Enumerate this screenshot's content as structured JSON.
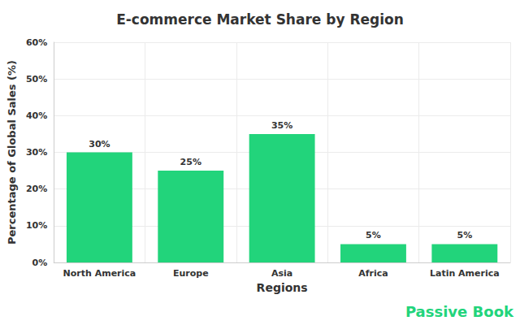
{
  "chart_data": {
    "type": "bar",
    "title": "E-commerce Market Share by Region",
    "x_label": "Regions",
    "y_label": "Percentage of Global Sales (%)",
    "categories": [
      "North America",
      "Europe",
      "Asia",
      "Africa",
      "Latin America"
    ],
    "values": [
      30,
      25,
      35,
      5,
      5
    ],
    "value_labels": [
      "30%",
      "25%",
      "35%",
      "5%",
      "5%"
    ],
    "color": "#22d47b",
    "ylim": [
      0,
      60
    ],
    "yticks": [
      {
        "value": 0,
        "label": "0%"
      },
      {
        "value": 10,
        "label": "10%"
      },
      {
        "value": 20,
        "label": "20%"
      },
      {
        "value": 30,
        "label": "30%"
      },
      {
        "value": 40,
        "label": "40%"
      },
      {
        "value": 50,
        "label": "50%"
      },
      {
        "value": 60,
        "label": "60%"
      }
    ],
    "grid": true,
    "data_labels": true,
    "annotations": [
      "Passive Book"
    ]
  }
}
